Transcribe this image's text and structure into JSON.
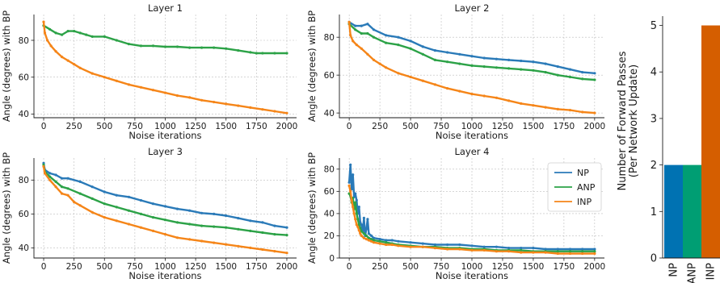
{
  "colors": {
    "NP": "#2a7ab8",
    "ANP": "#2ca247",
    "INP": "#f58518",
    "bar_NP": "#0072b2",
    "bar_ANP": "#009e73",
    "bar_INP": "#d55e00"
  },
  "chart_data": [
    {
      "type": "line",
      "title": "Layer 1",
      "xlabel": "Noise iterations",
      "ylabel": "Angle (degrees) with BP",
      "xlim": [
        -80,
        2080
      ],
      "ylim": [
        38,
        94
      ],
      "xticks": [
        0,
        250,
        500,
        750,
        1000,
        1250,
        1500,
        1750,
        2000
      ],
      "yticks": [
        40,
        60,
        80
      ],
      "grid": true,
      "series": [
        {
          "name": "ANP",
          "x": [
            0,
            50,
            100,
            150,
            200,
            250,
            300,
            350,
            400,
            500,
            600,
            700,
            800,
            900,
            1000,
            1100,
            1200,
            1300,
            1400,
            1500,
            1600,
            1700,
            1750,
            1800,
            1900,
            2000
          ],
          "values": [
            88,
            86,
            84,
            83,
            85,
            85,
            84,
            83,
            82,
            82,
            80,
            78,
            77,
            77,
            76.5,
            76.5,
            76,
            76,
            76,
            75.5,
            74.5,
            73.5,
            73,
            73,
            73,
            73
          ]
        },
        {
          "name": "INP",
          "x": [
            0,
            10,
            30,
            60,
            100,
            150,
            200,
            250,
            300,
            400,
            500,
            600,
            700,
            800,
            900,
            1000,
            1100,
            1200,
            1300,
            1400,
            1500,
            1600,
            1700,
            1800,
            1900,
            2000
          ],
          "values": [
            90,
            84,
            80,
            77,
            74,
            71,
            69,
            67,
            65,
            62,
            60,
            58,
            56,
            54.5,
            53,
            51.5,
            50,
            49,
            47.5,
            46.5,
            45.5,
            44.5,
            43.5,
            42.5,
            41.5,
            40.5
          ]
        }
      ]
    },
    {
      "type": "line",
      "title": "Layer 2",
      "xlabel": "Noise iterations",
      "ylabel": "Angle (degrees) with BP",
      "xlim": [
        -80,
        2080
      ],
      "ylim": [
        37.5,
        92
      ],
      "xticks": [
        0,
        250,
        500,
        750,
        1000,
        1250,
        1500,
        1750,
        2000
      ],
      "yticks": [
        40,
        60,
        80
      ],
      "grid": true,
      "series": [
        {
          "name": "NP",
          "x": [
            0,
            50,
            100,
            150,
            200,
            300,
            400,
            500,
            600,
            700,
            800,
            900,
            1000,
            1100,
            1200,
            1300,
            1400,
            1500,
            1600,
            1700,
            1800,
            1900,
            2000
          ],
          "values": [
            88,
            86,
            86,
            87,
            84,
            81,
            80,
            78,
            75,
            73,
            72,
            71,
            70,
            69,
            68.5,
            68,
            67.5,
            67,
            66,
            64.5,
            63,
            61.5,
            61
          ]
        },
        {
          "name": "ANP",
          "x": [
            0,
            50,
            100,
            150,
            200,
            300,
            400,
            500,
            600,
            700,
            800,
            900,
            1000,
            1100,
            1200,
            1300,
            1400,
            1500,
            1600,
            1700,
            1800,
            1900,
            2000
          ],
          "values": [
            87,
            84,
            82,
            82,
            80,
            77,
            76,
            74,
            71,
            68,
            67,
            66,
            65,
            64.5,
            64,
            63.5,
            63,
            62.5,
            61.5,
            60,
            59,
            58,
            57.5
          ]
        },
        {
          "name": "INP",
          "x": [
            0,
            10,
            30,
            60,
            100,
            150,
            200,
            250,
            300,
            400,
            500,
            600,
            700,
            800,
            900,
            1000,
            1100,
            1200,
            1300,
            1400,
            1500,
            1600,
            1700,
            1800,
            1900,
            2000
          ],
          "values": [
            88,
            81,
            78,
            76,
            74,
            71,
            68,
            66,
            64,
            61,
            59,
            57,
            55,
            53,
            51.5,
            50,
            49,
            48,
            46.5,
            45,
            44,
            43,
            42,
            41.5,
            40.5,
            40
          ]
        }
      ]
    },
    {
      "type": "line",
      "title": "Layer 3",
      "xlabel": "Noise iterations",
      "ylabel": "Angle (degrees) with BP",
      "xlim": [
        -80,
        2080
      ],
      "ylim": [
        34,
        93
      ],
      "xticks": [
        0,
        250,
        500,
        750,
        1000,
        1250,
        1500,
        1750,
        2000
      ],
      "yticks": [
        40,
        60,
        80
      ],
      "grid": true,
      "series": [
        {
          "name": "NP",
          "x": [
            0,
            10,
            50,
            100,
            150,
            200,
            300,
            400,
            500,
            600,
            700,
            800,
            900,
            1000,
            1100,
            1200,
            1300,
            1400,
            1500,
            1600,
            1700,
            1800,
            1900,
            2000
          ],
          "values": [
            90,
            86,
            84,
            83,
            81,
            81,
            79,
            76,
            73,
            71,
            70,
            68,
            66,
            64.5,
            63,
            62,
            60.5,
            60,
            59,
            57.5,
            56,
            55,
            53,
            52
          ]
        },
        {
          "name": "ANP",
          "x": [
            0,
            10,
            50,
            100,
            150,
            200,
            300,
            400,
            500,
            600,
            700,
            800,
            900,
            1000,
            1100,
            1200,
            1300,
            1400,
            1500,
            1600,
            1700,
            1800,
            1900,
            2000
          ],
          "values": [
            89,
            85,
            82,
            79,
            76,
            75,
            72,
            69,
            66,
            64,
            62,
            60,
            58,
            56.5,
            55,
            54,
            53,
            52.5,
            52,
            51,
            50,
            49,
            48,
            47.5
          ]
        },
        {
          "name": "INP",
          "x": [
            0,
            10,
            50,
            100,
            150,
            200,
            250,
            300,
            400,
            500,
            600,
            700,
            800,
            900,
            1000,
            1100,
            1200,
            1300,
            1400,
            1500,
            1600,
            1700,
            1800,
            1900,
            2000
          ],
          "values": [
            88,
            84,
            80,
            76,
            72,
            71,
            67,
            65,
            61,
            58,
            56,
            54,
            52,
            50,
            48,
            46,
            45,
            44,
            43,
            42,
            41,
            40,
            39,
            38,
            37
          ]
        }
      ]
    },
    {
      "type": "line",
      "title": "Layer 4",
      "xlabel": "Noise iterations",
      "ylabel": "Angle (degrees) with BP",
      "xlim": [
        -80,
        2080
      ],
      "ylim": [
        0,
        90
      ],
      "xticks": [
        0,
        250,
        500,
        750,
        1000,
        1250,
        1500,
        1750,
        2000
      ],
      "yticks": [
        0,
        20,
        40,
        60,
        80
      ],
      "grid": true,
      "legend": {
        "position": "top-right",
        "entries": [
          "NP",
          "ANP",
          "INP"
        ]
      },
      "series": [
        {
          "name": "NP",
          "x": [
            0,
            10,
            20,
            30,
            40,
            50,
            60,
            70,
            80,
            90,
            100,
            110,
            120,
            130,
            140,
            150,
            160,
            180,
            200,
            250,
            300,
            350,
            400,
            500,
            600,
            700,
            800,
            900,
            1000,
            1100,
            1200,
            1300,
            1400,
            1500,
            1600,
            1700,
            1800,
            1900,
            2000
          ],
          "values": [
            68,
            84,
            62,
            75,
            55,
            58,
            52,
            40,
            46,
            32,
            30,
            24,
            36,
            20,
            26,
            35,
            22,
            20,
            18,
            17,
            16,
            16,
            15,
            14,
            13,
            12,
            12,
            12,
            11,
            10,
            10,
            9,
            9,
            9,
            8,
            8,
            8,
            8,
            8
          ]
        },
        {
          "name": "ANP",
          "x": [
            0,
            10,
            20,
            30,
            40,
            50,
            60,
            70,
            80,
            90,
            100,
            120,
            140,
            160,
            180,
            200,
            250,
            300,
            350,
            400,
            500,
            600,
            700,
            800,
            900,
            1000,
            1100,
            1200,
            1300,
            1400,
            1500,
            1600,
            1700,
            1800,
            1900,
            2000
          ],
          "values": [
            58,
            56,
            50,
            54,
            44,
            50,
            40,
            35,
            30,
            27,
            24,
            22,
            20,
            18,
            17,
            16,
            15,
            14,
            13,
            12,
            11,
            10,
            10,
            9,
            9,
            8,
            8,
            7,
            7,
            7,
            6,
            6,
            6,
            6,
            6,
            6
          ]
        },
        {
          "name": "INP",
          "x": [
            0,
            10,
            20,
            30,
            40,
            50,
            60,
            70,
            80,
            90,
            100,
            120,
            140,
            160,
            180,
            200,
            250,
            300,
            350,
            400,
            500,
            600,
            700,
            800,
            900,
            1000,
            1100,
            1200,
            1300,
            1400,
            1500,
            1600,
            1700,
            1800,
            1900,
            2000
          ],
          "values": [
            65,
            60,
            52,
            46,
            40,
            35,
            30,
            28,
            25,
            22,
            20,
            18,
            17,
            16,
            15,
            14,
            13,
            12,
            12,
            11,
            10,
            10,
            9,
            8,
            8,
            7,
            7,
            6,
            6,
            5,
            5,
            5,
            4,
            4,
            4,
            4
          ]
        }
      ]
    },
    {
      "type": "bar",
      "title": "",
      "xlabel": "",
      "ylabel": "Number of Forward Passes\n(Per Network Update)",
      "categories": [
        "NP",
        "ANP",
        "INP"
      ],
      "values": [
        2,
        2,
        5
      ],
      "ylim": [
        0,
        5.2
      ],
      "yticks": [
        0,
        1,
        2,
        3,
        4,
        5
      ],
      "grid": false
    }
  ]
}
